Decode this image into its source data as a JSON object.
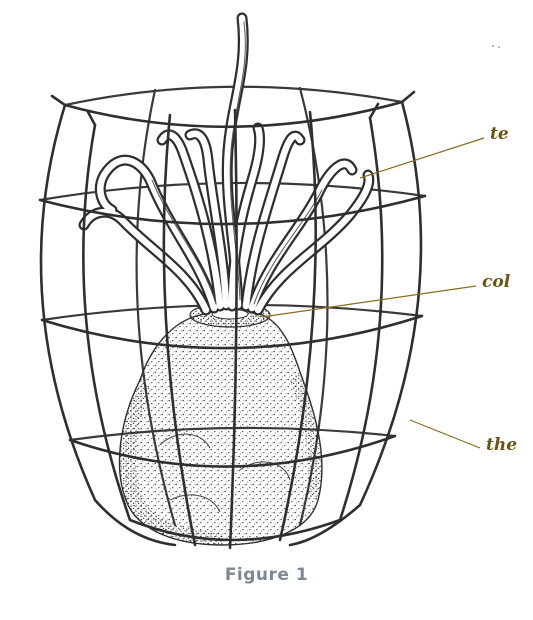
{
  "figure": {
    "caption": "Figure 1",
    "labels": {
      "tentacles": "te",
      "column": "col",
      "theca": "the"
    },
    "colors": {
      "ink": "#2f2f2f",
      "leader": "#8a6d1f",
      "label": "#6b5312",
      "caption": "#7d8896"
    }
  }
}
